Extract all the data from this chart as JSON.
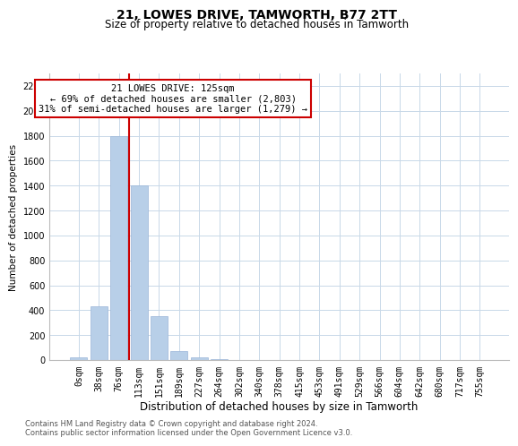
{
  "title": "21, LOWES DRIVE, TAMWORTH, B77 2TT",
  "subtitle": "Size of property relative to detached houses in Tamworth",
  "xlabel": "Distribution of detached houses by size in Tamworth",
  "ylabel": "Number of detached properties",
  "footnote1": "Contains HM Land Registry data © Crown copyright and database right 2024.",
  "footnote2": "Contains public sector information licensed under the Open Government Licence v3.0.",
  "bar_labels": [
    "0sqm",
    "38sqm",
    "76sqm",
    "113sqm",
    "151sqm",
    "189sqm",
    "227sqm",
    "264sqm",
    "302sqm",
    "340sqm",
    "378sqm",
    "415sqm",
    "453sqm",
    "491sqm",
    "529sqm",
    "566sqm",
    "604sqm",
    "642sqm",
    "680sqm",
    "717sqm",
    "755sqm"
  ],
  "bar_values": [
    20,
    430,
    1800,
    1400,
    350,
    75,
    25,
    5,
    0,
    0,
    0,
    0,
    0,
    0,
    0,
    0,
    0,
    0,
    0,
    0,
    0
  ],
  "bar_color": "#b8cfe8",
  "bar_edge_color": "#9ab5d8",
  "property_line_label": "21 LOWES DRIVE: 125sqm",
  "annotation_line1": "← 69% of detached houses are smaller (2,803)",
  "annotation_line2": "31% of semi-detached houses are larger (1,279) →",
  "property_line_x": 2.5,
  "ylim": [
    0,
    2300
  ],
  "yticks": [
    0,
    200,
    400,
    600,
    800,
    1000,
    1200,
    1400,
    1600,
    1800,
    2000,
    2200
  ],
  "grid_color": "#c8d8e8",
  "annotation_box_color": "#cc0000",
  "annotation_text_color": "#000000",
  "bg_color": "#ffffff",
  "title_fontsize": 10,
  "subtitle_fontsize": 8.5,
  "xlabel_fontsize": 8.5,
  "ylabel_fontsize": 7.5,
  "tick_fontsize": 7,
  "footnote_fontsize": 6,
  "annotation_fontsize": 7.5
}
